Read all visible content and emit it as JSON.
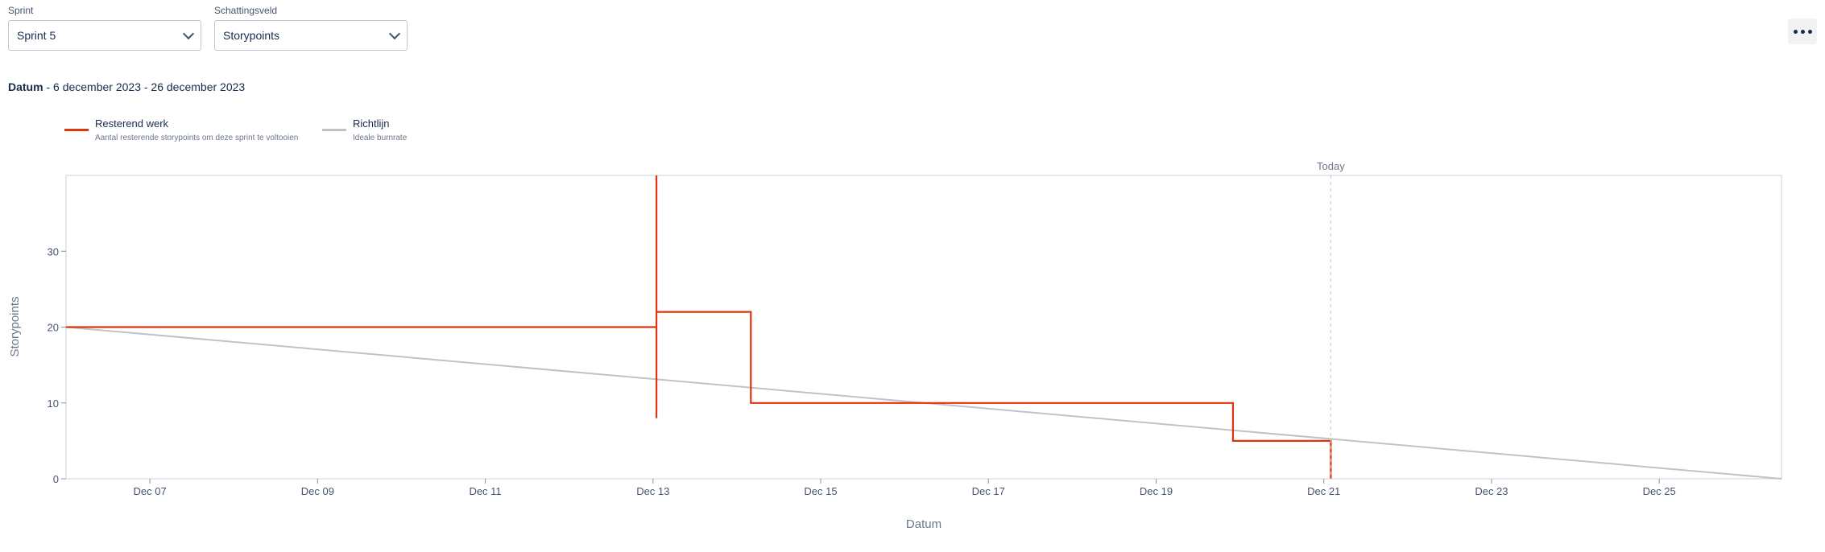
{
  "filters": {
    "sprint_label": "Sprint",
    "sprint_value": "Sprint 5",
    "estimation_label": "Schattingsveld",
    "estimation_value": "Storypoints"
  },
  "date_range": {
    "label": "Datum",
    "separator": " - ",
    "value": "6 december 2023 - 26 december 2023"
  },
  "legend": [
    {
      "title": "Resterend werk",
      "description": "Aantal resterende storypoints om deze sprint te voltooien",
      "color": "#de350b"
    },
    {
      "title": "Richtlijn",
      "description": "Ideale burnrate",
      "color": "#c1c2c6"
    }
  ],
  "chart_data": {
    "type": "line",
    "xlabel": "Datum",
    "ylabel": "Storypoints",
    "x_ticks": [
      "Dec 07",
      "Dec 09",
      "Dec 11",
      "Dec 13",
      "Dec 15",
      "Dec 17",
      "Dec 19",
      "Dec 21",
      "Dec 23",
      "Dec 25"
    ],
    "y_ticks": [
      0,
      10,
      20,
      30
    ],
    "xlim": [
      "2023-12-06T12:00",
      "2023-12-26T23:00"
    ],
    "ylim": [
      0,
      40
    ],
    "today_label": "Today",
    "today": "2023-12-21T14:00",
    "series": [
      {
        "name": "Resterend werk",
        "step": true,
        "points": [
          {
            "x": "2023-12-06T12:00",
            "y": 20
          },
          {
            "x": "2023-12-13T13:00",
            "y": 20
          },
          {
            "x": "2023-12-13T13:00",
            "y": 8
          },
          {
            "x": "2023-12-13T13:00",
            "y": 40
          },
          {
            "x": "2023-12-13T13:00",
            "y": 22
          },
          {
            "x": "2023-12-14T16:00",
            "y": 22
          },
          {
            "x": "2023-12-14T16:00",
            "y": 10
          },
          {
            "x": "2023-12-20T10:00",
            "y": 10
          },
          {
            "x": "2023-12-20T10:00",
            "y": 5
          },
          {
            "x": "2023-12-21T14:00",
            "y": 5
          },
          {
            "x": "2023-12-21T14:00",
            "y": 0
          }
        ]
      },
      {
        "name": "Richtlijn",
        "step": false,
        "points": [
          {
            "x": "2023-12-06T12:00",
            "y": 20
          },
          {
            "x": "2023-12-26T23:00",
            "y": 0
          }
        ]
      }
    ]
  }
}
